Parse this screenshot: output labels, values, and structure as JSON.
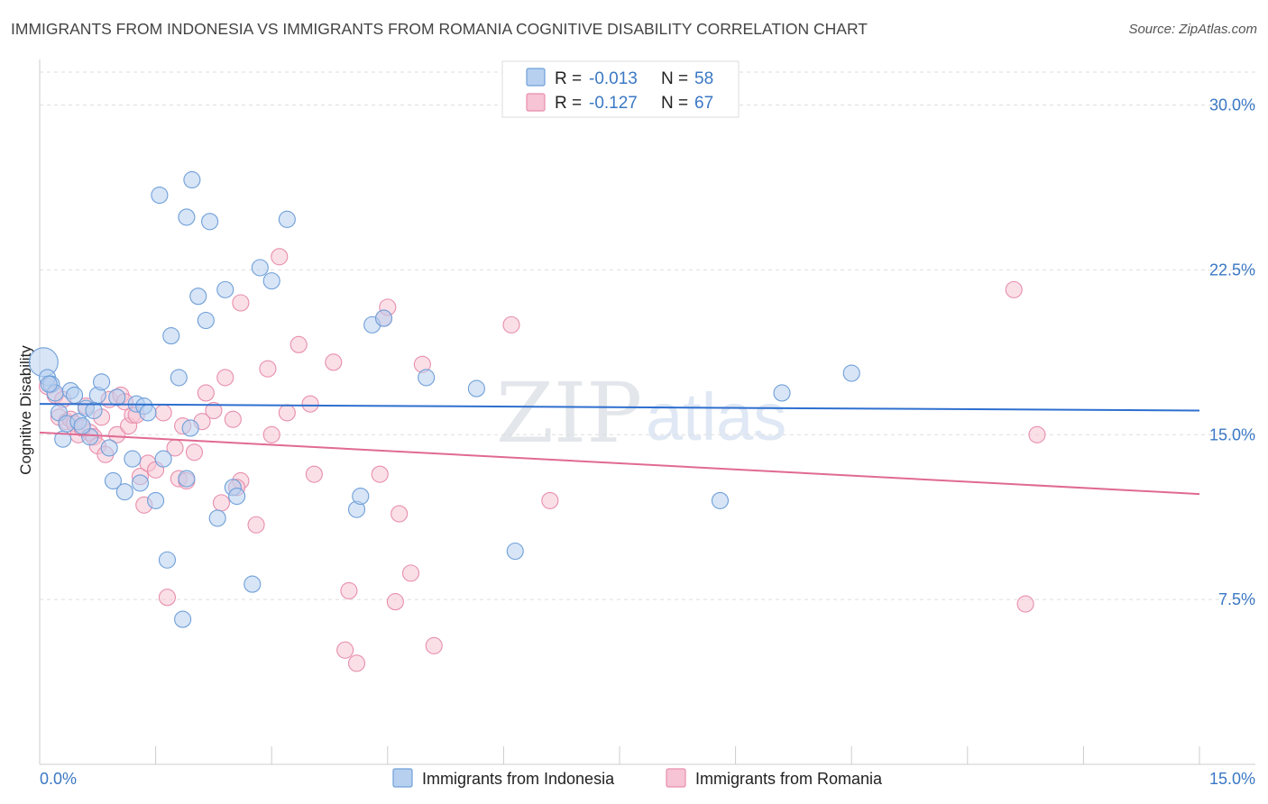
{
  "title": "IMMIGRANTS FROM INDONESIA VS IMMIGRANTS FROM ROMANIA COGNITIVE DISABILITY CORRELATION CHART",
  "source": "Source: ZipAtlas.com",
  "watermark": {
    "zip": "ZIP",
    "atlas": "atlas"
  },
  "legend": {
    "rows": [
      {
        "r_label": "R =",
        "r_value": "-0.013",
        "n_label": "N =",
        "n_value": "58"
      },
      {
        "r_label": "R =",
        "r_value": "-0.127",
        "n_label": "N =",
        "n_value": "67"
      }
    ]
  },
  "colors": {
    "indonesia_fill": "#b7d0f0",
    "indonesia_stroke": "#6f9fd8",
    "indonesia_line": "#2e6fcf",
    "romania_fill": "#f6c4d4",
    "romania_stroke": "#e88ead",
    "romania_line": "#e06a93",
    "grid": "#dddddd",
    "axis_text": "#3b78c4"
  },
  "chart_data": {
    "type": "scatter",
    "title": "IMMIGRANTS FROM INDONESIA VS IMMIGRANTS FROM ROMANIA COGNITIVE DISABILITY CORRELATION CHART",
    "xlabel": "",
    "ylabel": "Cognitive Disability",
    "xlim": [
      0,
      15
    ],
    "ylim": [
      0,
      31.5
    ],
    "x_tick_labels": [
      "0.0%",
      "15.0%"
    ],
    "y_ticks": [
      7.5,
      15.0,
      22.5,
      30.0
    ],
    "y_tick_labels": [
      "7.5%",
      "15.0%",
      "22.5%",
      "30.0%"
    ],
    "grid": "horizontal dashed",
    "series": [
      {
        "name": "Immigrants from Indonesia",
        "r": -0.013,
        "n": 58,
        "trend": {
          "x": [
            0,
            15
          ],
          "y": [
            16.4,
            16.1
          ]
        },
        "points": [
          [
            0.05,
            18.3
          ],
          [
            0.1,
            17.6
          ],
          [
            0.15,
            17.3
          ],
          [
            0.2,
            16.9
          ],
          [
            0.25,
            16.0
          ],
          [
            0.3,
            14.8
          ],
          [
            0.35,
            15.5
          ],
          [
            0.4,
            17.0
          ],
          [
            0.5,
            15.6
          ],
          [
            0.6,
            16.2
          ],
          [
            0.65,
            14.9
          ],
          [
            0.75,
            16.8
          ],
          [
            0.8,
            17.4
          ],
          [
            0.9,
            14.4
          ],
          [
            0.95,
            12.9
          ],
          [
            1.1,
            12.4
          ],
          [
            1.2,
            13.9
          ],
          [
            1.25,
            16.4
          ],
          [
            1.3,
            12.8
          ],
          [
            1.35,
            16.3
          ],
          [
            1.4,
            16.0
          ],
          [
            1.5,
            12.0
          ],
          [
            1.6,
            13.9
          ],
          [
            1.65,
            9.3
          ],
          [
            1.55,
            25.9
          ],
          [
            1.7,
            19.5
          ],
          [
            1.8,
            17.6
          ],
          [
            1.85,
            6.6
          ],
          [
            1.9,
            13.0
          ],
          [
            1.95,
            15.3
          ],
          [
            1.9,
            24.9
          ],
          [
            1.97,
            26.6
          ],
          [
            2.05,
            21.3
          ],
          [
            2.15,
            20.2
          ],
          [
            2.2,
            24.7
          ],
          [
            2.3,
            11.2
          ],
          [
            2.4,
            21.6
          ],
          [
            2.5,
            12.6
          ],
          [
            2.55,
            12.2
          ],
          [
            2.75,
            8.2
          ],
          [
            2.85,
            22.6
          ],
          [
            3.0,
            22.0
          ],
          [
            3.2,
            24.8
          ],
          [
            4.1,
            11.6
          ],
          [
            4.15,
            12.2
          ],
          [
            4.3,
            20.0
          ],
          [
            4.45,
            20.3
          ],
          [
            5.0,
            17.6
          ],
          [
            5.65,
            17.1
          ],
          [
            6.15,
            9.7
          ],
          [
            8.8,
            12.0
          ],
          [
            9.6,
            16.9
          ],
          [
            10.5,
            17.8
          ],
          [
            0.12,
            17.3
          ],
          [
            0.45,
            16.8
          ],
          [
            0.55,
            15.4
          ],
          [
            0.7,
            16.1
          ],
          [
            1.0,
            16.7
          ]
        ]
      },
      {
        "name": "Immigrants from Romania",
        "r": -0.127,
        "n": 67,
        "trend": {
          "x": [
            0,
            15
          ],
          "y": [
            15.1,
            12.3
          ]
        },
        "points": [
          [
            0.1,
            17.2
          ],
          [
            0.2,
            16.8
          ],
          [
            0.25,
            15.8
          ],
          [
            0.35,
            15.6
          ],
          [
            0.4,
            15.7
          ],
          [
            0.45,
            15.5
          ],
          [
            0.5,
            15.0
          ],
          [
            0.6,
            16.3
          ],
          [
            0.65,
            15.1
          ],
          [
            0.7,
            14.9
          ],
          [
            0.75,
            14.5
          ],
          [
            0.8,
            15.8
          ],
          [
            0.85,
            14.1
          ],
          [
            0.9,
            16.6
          ],
          [
            1.0,
            15.0
          ],
          [
            1.05,
            16.8
          ],
          [
            1.15,
            15.4
          ],
          [
            1.2,
            15.9
          ],
          [
            1.25,
            15.9
          ],
          [
            1.3,
            13.1
          ],
          [
            1.35,
            11.8
          ],
          [
            1.4,
            13.7
          ],
          [
            1.5,
            13.4
          ],
          [
            1.6,
            16.0
          ],
          [
            1.65,
            7.6
          ],
          [
            1.75,
            14.4
          ],
          [
            1.8,
            13.0
          ],
          [
            1.85,
            15.4
          ],
          [
            1.9,
            12.9
          ],
          [
            2.0,
            14.2
          ],
          [
            2.1,
            15.6
          ],
          [
            2.15,
            16.9
          ],
          [
            2.25,
            16.1
          ],
          [
            2.35,
            11.9
          ],
          [
            2.4,
            17.6
          ],
          [
            2.5,
            15.7
          ],
          [
            2.6,
            12.9
          ],
          [
            2.55,
            12.6
          ],
          [
            2.6,
            21.0
          ],
          [
            2.8,
            10.9
          ],
          [
            2.95,
            18.0
          ],
          [
            3.0,
            15.0
          ],
          [
            3.1,
            23.1
          ],
          [
            3.2,
            16.0
          ],
          [
            3.35,
            19.1
          ],
          [
            3.5,
            16.4
          ],
          [
            3.55,
            13.2
          ],
          [
            3.8,
            18.3
          ],
          [
            3.95,
            5.2
          ],
          [
            4.0,
            7.9
          ],
          [
            4.1,
            4.6
          ],
          [
            4.4,
            13.2
          ],
          [
            4.45,
            20.3
          ],
          [
            4.5,
            20.8
          ],
          [
            4.6,
            7.4
          ],
          [
            4.65,
            11.4
          ],
          [
            4.8,
            8.7
          ],
          [
            4.95,
            18.2
          ],
          [
            5.1,
            5.4
          ],
          [
            6.1,
            20.0
          ],
          [
            6.6,
            12.0
          ],
          [
            12.6,
            21.6
          ],
          [
            12.75,
            7.3
          ],
          [
            12.9,
            15.0
          ],
          [
            0.3,
            16.6
          ],
          [
            0.55,
            15.3
          ],
          [
            1.1,
            16.5
          ]
        ]
      }
    ]
  },
  "bottom_legend": {
    "indonesia": "Immigrants from Indonesia",
    "romania": "Immigrants from Romania"
  }
}
